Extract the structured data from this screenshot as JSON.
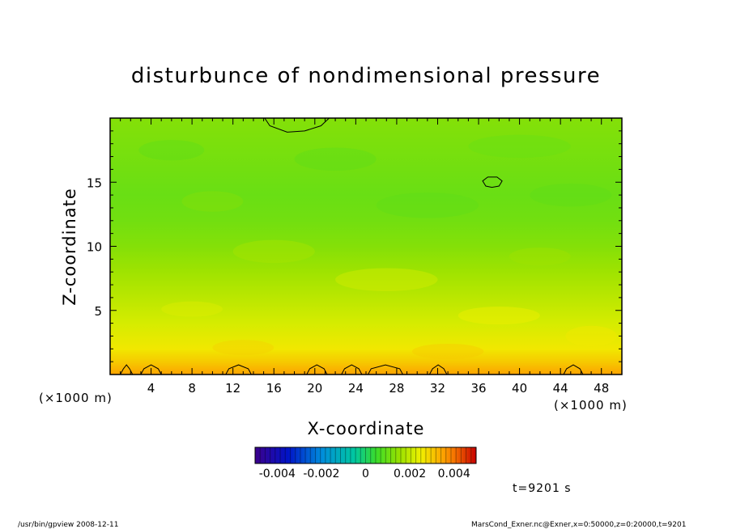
{
  "chart_data": {
    "type": "heatmap",
    "title": "disturbunce of nondimensional pressure",
    "xlabel": "X-coordinate",
    "ylabel": "Z-coordinate",
    "x_unit_left": "(×1000 m)",
    "x_unit_right": "(×1000 m)",
    "xlim": [
      0,
      50
    ],
    "ylim": [
      0,
      20
    ],
    "x_ticks": [
      4,
      8,
      12,
      16,
      20,
      24,
      28,
      32,
      36,
      40,
      44,
      48
    ],
    "y_ticks": [
      5,
      10,
      15
    ],
    "colorbar": {
      "range": [
        -0.005,
        0.005
      ],
      "tick_labels": [
        "-0.004",
        "-0.002",
        "0",
        "0.002",
        "0.004"
      ],
      "tick_values": [
        -0.004,
        -0.002,
        0,
        0.002,
        0.004
      ]
    },
    "field_levels": {
      "z": [
        0,
        1,
        2,
        4,
        6,
        8,
        10,
        12,
        14,
        16,
        18,
        20
      ],
      "value": [
        0.0035,
        0.003,
        0.0026,
        0.0022,
        0.0019,
        0.0016,
        0.0013,
        0.0011,
        0.001,
        0.0011,
        0.0012,
        0.0013
      ]
    },
    "time_label": "t=9201 s",
    "contour_level_note": "closed contours near x=18-21 z=18.5-20, x=36-38 z=14.7-15.3, and bumps near z=0-1",
    "grid": false,
    "legend": "colorbar below plot"
  },
  "footer": {
    "left": "/usr/bin/gpview   2008-12-11",
    "right": "MarsCond_Exner.nc@Exner,x=0:50000,z=0:20000,t=9201"
  },
  "colors": {
    "frame": "#000000",
    "background": "#ffffff"
  }
}
